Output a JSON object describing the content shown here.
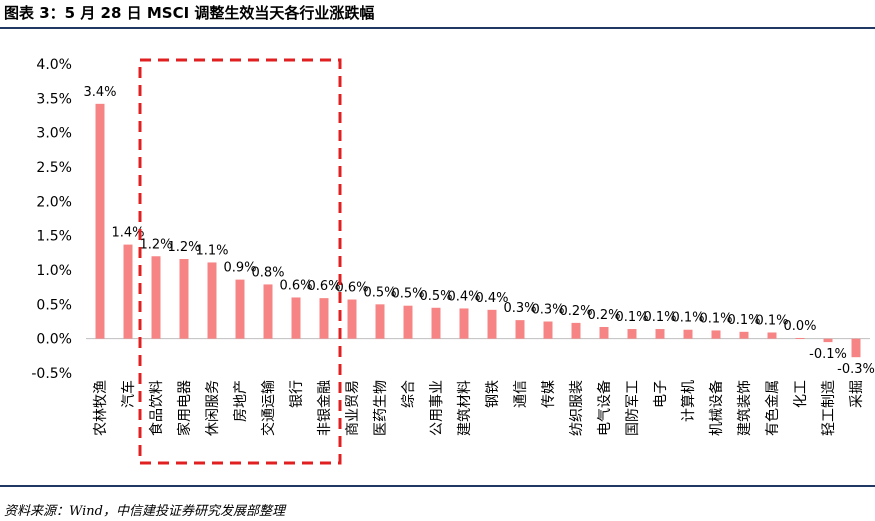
{
  "header": {
    "title": "图表 3：5 月 28 日 MSCI 调整生效当天各行业涨跌幅"
  },
  "footer": {
    "source": "资料来源：Wind，中信建投证券研究发展部整理"
  },
  "colors": {
    "bar": "#f68484",
    "highlight": "#e02020",
    "axis": "#bfbfbf",
    "rule": "#1f3864"
  },
  "chart_data": {
    "type": "bar",
    "title": "5 月 28 日 MSCI 调整生效当天各行业涨跌幅",
    "xlabel": "",
    "ylabel": "",
    "ylim": [
      -0.5,
      4.0
    ],
    "yticks": [
      "-0.5%",
      "0.0%",
      "0.5%",
      "1.0%",
      "1.5%",
      "2.0%",
      "2.5%",
      "3.0%",
      "3.5%",
      "4.0%"
    ],
    "ytick_values": [
      -0.5,
      0.0,
      0.5,
      1.0,
      1.5,
      2.0,
      2.5,
      3.0,
      3.5,
      4.0
    ],
    "grid": false,
    "categories": [
      "农林牧渔",
      "汽车",
      "食品饮料",
      "家用电器",
      "休闲服务",
      "房地产",
      "交通运输",
      "银行",
      "非银金融",
      "商业贸易",
      "医药生物",
      "综合",
      "公用事业",
      "建筑材料",
      "钢铁",
      "通信",
      "传媒",
      "纺织服装",
      "电气设备",
      "国防军工",
      "电子",
      "计算机",
      "机械设备",
      "建筑装饰",
      "有色金属",
      "化工",
      "轻工制造",
      "采掘"
    ],
    "values": [
      3.42,
      1.37,
      1.2,
      1.16,
      1.11,
      0.86,
      0.79,
      0.6,
      0.59,
      0.57,
      0.5,
      0.48,
      0.45,
      0.44,
      0.42,
      0.27,
      0.25,
      0.23,
      0.17,
      0.14,
      0.14,
      0.13,
      0.12,
      0.1,
      0.09,
      0.01,
      -0.05,
      -0.27
    ],
    "data_labels": [
      "3.4%",
      "1.4%",
      "1.2%",
      "1.2%",
      "1.1%",
      "0.9%",
      "0.8%",
      "0.6%",
      "0.6%",
      "0.6%",
      "0.5%",
      "0.5%",
      "0.5%",
      "0.4%",
      "0.4%",
      "0.3%",
      "0.3%",
      "0.2%",
      "0.2%",
      "0.1%",
      "0.1%",
      "0.1%",
      "0.1%",
      "0.1%",
      "0.1%",
      "0.0%",
      "-0.1%",
      "-0.3%"
    ],
    "highlight_range": [
      "食品饮料",
      "非银金融"
    ]
  }
}
